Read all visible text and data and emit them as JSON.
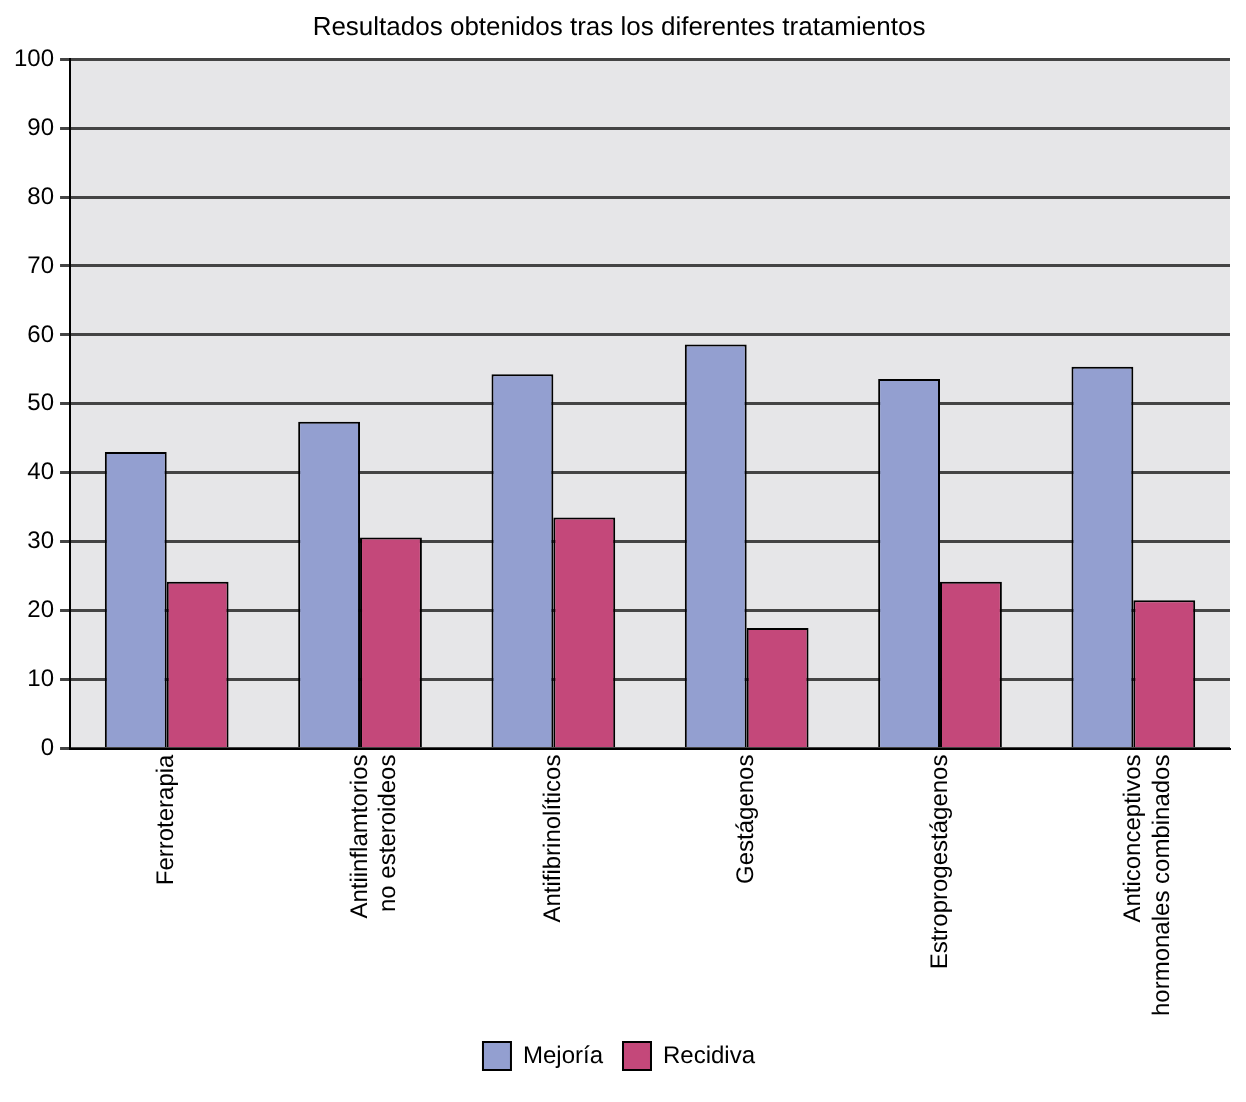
{
  "chart_data": {
    "type": "bar",
    "title": "Resultados obtenidos tras los diferentes tratamientos",
    "categories": [
      "Ferroterapia",
      "Antiinflamtorios no esteroideos",
      "Antifibrinolíticos",
      "Gestágenos",
      "Estroprogestágenos",
      "Anticonceptivos hormonales combinados"
    ],
    "series": [
      {
        "name": "Mejoría",
        "color": "#939fd0",
        "values": [
          43,
          47.4,
          54.3,
          58.6,
          53.6,
          55.4
        ]
      },
      {
        "name": "Recidiva",
        "color": "#c4487a",
        "values": [
          24.2,
          30.6,
          33.5,
          17.5,
          24.2,
          21.5
        ]
      }
    ],
    "ylim": [
      0,
      100
    ],
    "yticks": [
      0,
      10,
      20,
      30,
      40,
      50,
      60,
      70,
      80,
      90,
      100
    ],
    "grid": "y",
    "legend": "bottom"
  }
}
